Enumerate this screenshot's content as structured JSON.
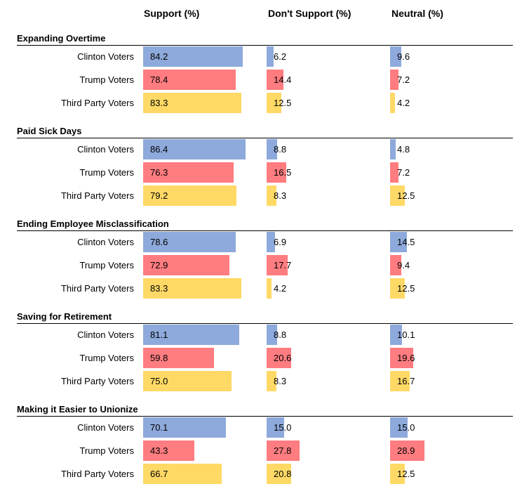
{
  "chart_data": {
    "type": "bar",
    "orientation": "horizontal",
    "columns": [
      "Support (%)",
      "Don't Support (%)",
      "Neutral (%)"
    ],
    "groups": [
      "Clinton Voters",
      "Trump Voters",
      "Third Party Voters"
    ],
    "colors": {
      "Clinton Voters": "#8ea9db",
      "Trump Voters": "#ff7c80",
      "Third Party Voters": "#ffd966"
    },
    "xlim": [
      0,
      100
    ],
    "sections": [
      {
        "title": "Expanding Overtime",
        "values": [
          [
            84.2,
            6.2,
            9.6
          ],
          [
            78.4,
            14.4,
            7.2
          ],
          [
            83.3,
            12.5,
            4.2
          ]
        ]
      },
      {
        "title": "Paid Sick Days",
        "values": [
          [
            86.4,
            8.8,
            4.8
          ],
          [
            76.3,
            16.5,
            7.2
          ],
          [
            79.2,
            8.3,
            12.5
          ]
        ]
      },
      {
        "title": "Ending Employee Misclassification",
        "values": [
          [
            78.6,
            6.9,
            14.5
          ],
          [
            72.9,
            17.7,
            9.4
          ],
          [
            83.3,
            4.2,
            12.5
          ]
        ]
      },
      {
        "title": "Saving for Retirement",
        "values": [
          [
            81.1,
            8.8,
            10.1
          ],
          [
            59.8,
            20.6,
            19.6
          ],
          [
            75.0,
            8.3,
            16.7
          ]
        ]
      },
      {
        "title": "Making it Easier to Unionize",
        "values": [
          [
            70.1,
            15.0,
            15.0
          ],
          [
            43.3,
            27.8,
            28.9
          ],
          [
            66.7,
            20.8,
            12.5
          ]
        ]
      }
    ]
  }
}
